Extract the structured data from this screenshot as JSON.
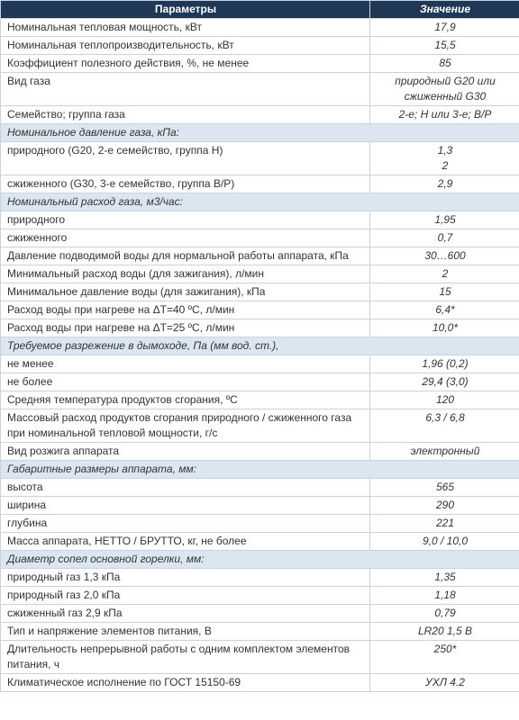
{
  "table": {
    "header": [
      "Параметры",
      "Значение"
    ],
    "rows": [
      {
        "param": "Номинальная тепловая мощность, кВт",
        "value": [
          "17,9"
        ]
      },
      {
        "param": "Номинальная теплопроизводительность, кВт",
        "value": [
          "15,5"
        ]
      },
      {
        "param": "Коэффициент полезного действия, %, не менее",
        "value": [
          "85"
        ]
      },
      {
        "param": "Вид газа",
        "value": [
          "природный G20 или сжиженный G30"
        ]
      },
      {
        "param": "Семейство; группа газа",
        "value": [
          "2-е; H или 3-е; B/P"
        ]
      },
      {
        "section": "Номинальное давление газа, кПа:"
      },
      {
        "param": "природного (G20, 2-е семейство, группа H)",
        "value": [
          "1,3",
          "2"
        ]
      },
      {
        "param": "сжиженного (G30, 3-е семейство, группа B/P)",
        "value": [
          "2,9"
        ]
      },
      {
        "section": "Номинальный расход газа, м3/час:"
      },
      {
        "param": "природного",
        "value": [
          "1,95"
        ]
      },
      {
        "param": "сжиженного",
        "value": [
          "0,7"
        ]
      },
      {
        "param": "Давление подводимой воды для нормальной работы аппарата, кПа",
        "value": [
          "30…600"
        ]
      },
      {
        "param": "Минимальный расход воды (для зажигания), л/мин",
        "value": [
          "2"
        ]
      },
      {
        "param": "Минимальное давление воды (для зажигания), кПа",
        "value": [
          "15"
        ]
      },
      {
        "param": "Расход воды при нагреве на ΔT=40 ºС, л/мин",
        "value": [
          "6,4*"
        ]
      },
      {
        "param": "Расход воды при нагреве на ΔT=25 ºС, л/мин",
        "value": [
          "10,0*"
        ]
      },
      {
        "section": "Требуемое разрежение в дымоходе, Па (мм вод. ст.),"
      },
      {
        "param": "не менее",
        "value": [
          "1,96 (0,2)"
        ]
      },
      {
        "param": "не более",
        "value": [
          "29,4 (3,0)"
        ]
      },
      {
        "param": "Средняя температура продуктов сгорания, ºС",
        "value": [
          "120"
        ]
      },
      {
        "param": "Массовый расход продуктов сгорания природного / сжиженного газа при номинальной тепловой мощности, г/с",
        "value": [
          "6,3 / 6,8"
        ]
      },
      {
        "param": "Вид розжига аппарата",
        "value": [
          "электронный"
        ]
      },
      {
        "section": "Габаритные размеры аппарата, мм:"
      },
      {
        "param": "высота",
        "value": [
          "565"
        ]
      },
      {
        "param": "ширина",
        "value": [
          "290"
        ]
      },
      {
        "param": "глубина",
        "value": [
          "221"
        ]
      },
      {
        "param": "Масса аппарата, НЕТТО / БРУТТО, кг, не более",
        "value": [
          "9,0 / 10,0"
        ]
      },
      {
        "section": "Диаметр сопел основной горелки, мм:"
      },
      {
        "param": "природный газ 1,3 кПа",
        "value": [
          "1,35"
        ]
      },
      {
        "param": "природный газ 2,0 кПа",
        "value": [
          "1,18"
        ]
      },
      {
        "param": "сжиженный газ 2,9 кПа",
        "value": [
          "0,79"
        ]
      },
      {
        "param": "Тип и напряжение элементов питания, В",
        "value": [
          "LR20 1,5 В"
        ]
      },
      {
        "param": "Длительность непрерывной работы с одним комплектом элементов питания, ч",
        "value": [
          "250*"
        ]
      },
      {
        "param": "Климатическое исполнение по ГОСТ 15150-69",
        "value": [
          "УХЛ 4.2"
        ]
      }
    ]
  }
}
